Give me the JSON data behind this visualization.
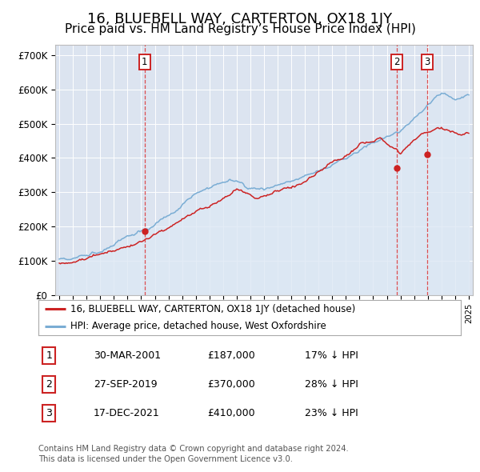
{
  "title": "16, BLUEBELL WAY, CARTERTON, OX18 1JY",
  "subtitle": "Price paid vs. HM Land Registry’s House Price Index (HPI)",
  "title_fontsize": 13,
  "subtitle_fontsize": 11,
  "plot_bg_color": "#dce4f0",
  "hpi_color": "#7aadd4",
  "hpi_fill_color": "#c5d8ee",
  "price_color": "#cc2222",
  "price_fill_color": "#e8c0c0",
  "ytick_labels": [
    "£0",
    "£100K",
    "£200K",
    "£300K",
    "£400K",
    "£500K",
    "£600K",
    "£700K"
  ],
  "yticks": [
    0,
    100000,
    200000,
    300000,
    400000,
    500000,
    600000,
    700000
  ],
  "xlim_start": 1994.7,
  "xlim_end": 2025.3,
  "ylim": [
    0,
    730000
  ],
  "legend_label_price": "16, BLUEBELL WAY, CARTERTON, OX18 1JY (detached house)",
  "legend_label_hpi": "HPI: Average price, detached house, West Oxfordshire",
  "transactions": [
    {
      "num": 1,
      "date": 2001.24,
      "price": 187000,
      "label": "30-MAR-2001",
      "pct": "17%"
    },
    {
      "num": 2,
      "date": 2019.74,
      "price": 370000,
      "label": "27-SEP-2019",
      "pct": "28%"
    },
    {
      "num": 3,
      "date": 2021.96,
      "price": 410000,
      "label": "17-DEC-2021",
      "pct": "23%"
    }
  ],
  "footer_line1": "Contains HM Land Registry data © Crown copyright and database right 2024.",
  "footer_line2": "This data is licensed under the Open Government Licence v3.0.",
  "table_rows": [
    [
      "1",
      "30-MAR-2001",
      "£187,000",
      "17% ↓ HPI"
    ],
    [
      "2",
      "27-SEP-2019",
      "£370,000",
      "28% ↓ HPI"
    ],
    [
      "3",
      "17-DEC-2021",
      "£410,000",
      "23% ↓ HPI"
    ]
  ]
}
